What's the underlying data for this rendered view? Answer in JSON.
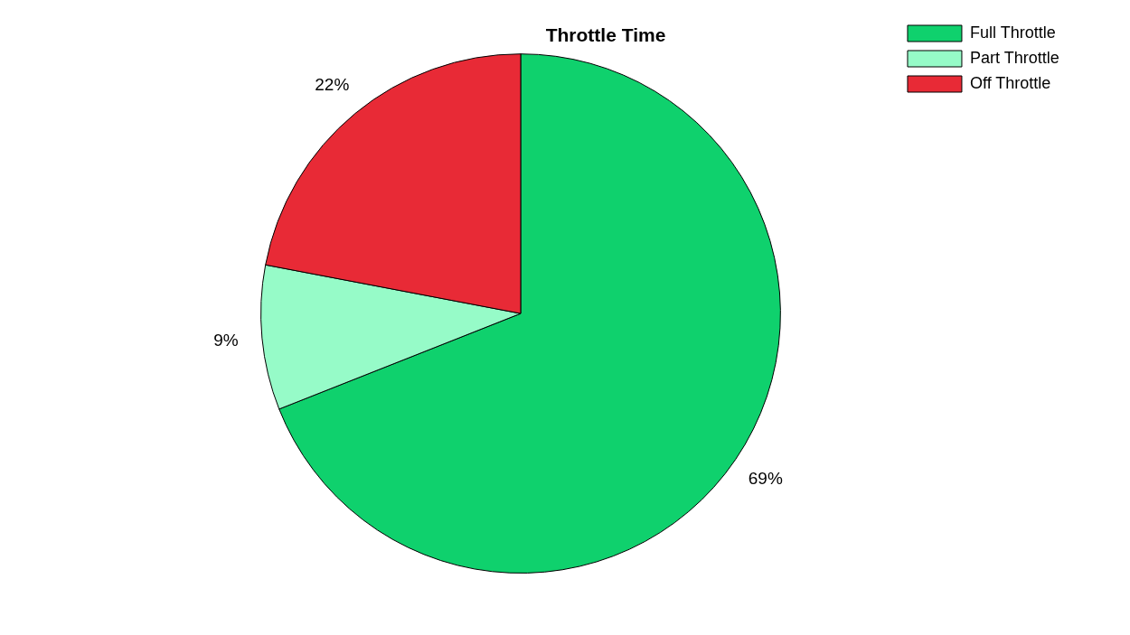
{
  "chart_data": {
    "type": "pie",
    "title": "Throttle Time",
    "categories": [
      "Full Throttle",
      "Part Throttle",
      "Off Throttle"
    ],
    "values": [
      69,
      9,
      22
    ],
    "colors": [
      "#0fd16d",
      "#96fbc8",
      "#e82a36"
    ],
    "value_labels": [
      "69%",
      "9%",
      "22%"
    ],
    "legend": "top right"
  }
}
